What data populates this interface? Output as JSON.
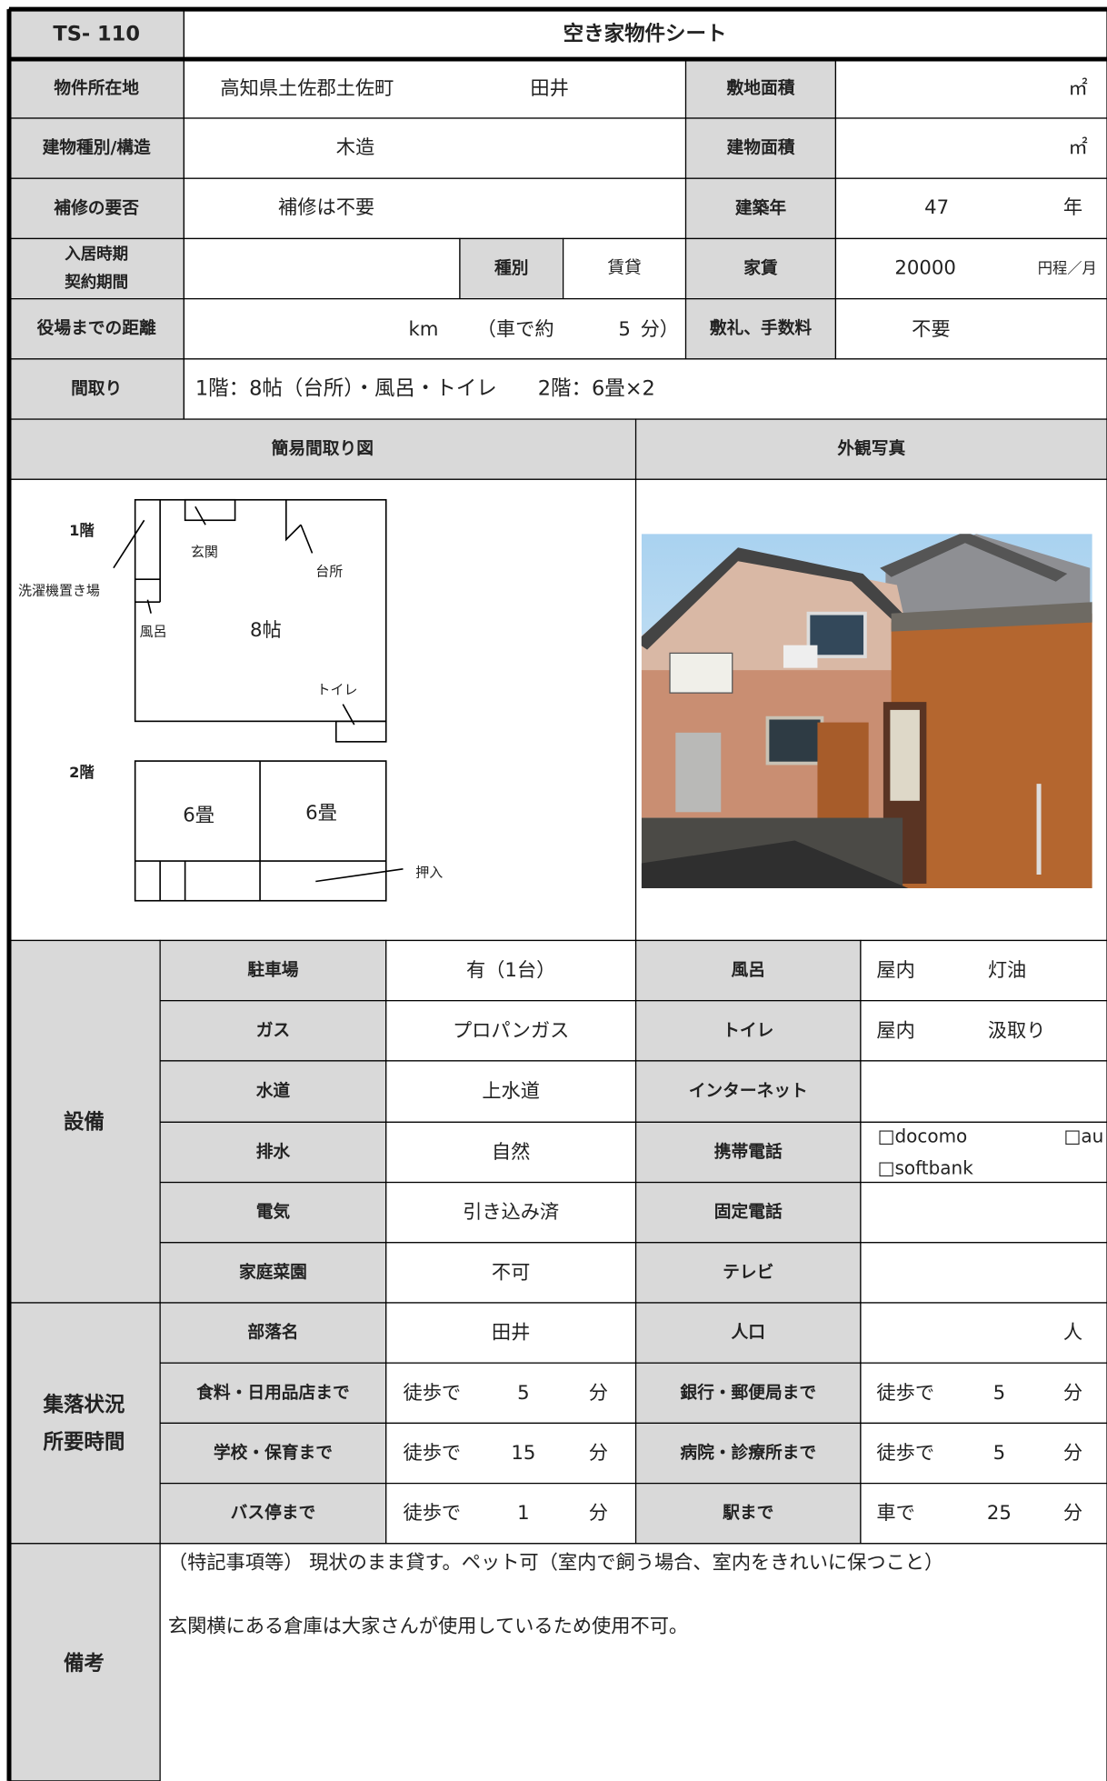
{
  "header": {
    "code": "TS- 110",
    "title": "空き家物件シート"
  },
  "property": {
    "location": {
      "label": "物件所在地",
      "value": "高知県土佐郡土佐町",
      "area": "田井"
    },
    "land_area": {
      "label": "敷地面積",
      "unit": "㎡"
    },
    "structure": {
      "label": "建物種別/構造",
      "value": "木造"
    },
    "building_area": {
      "label": "建物面積",
      "unit": "㎡"
    },
    "repair": {
      "label": "補修の要否",
      "value": "補修は不要"
    },
    "built": {
      "label": "建築年",
      "value": "47",
      "unit": "年"
    },
    "move_in": {
      "label": [
        "入居時期",
        "契約期間"
      ]
    },
    "kind": {
      "label": "種別",
      "value": "賃貸"
    },
    "rent": {
      "label": "家賃",
      "value": "20000",
      "unit": "円程／月"
    },
    "distance": {
      "label": "役場までの距離",
      "unit": "km",
      "note": "（車で約",
      "minutes": "5",
      "minutes_unit": "分）"
    },
    "fees": {
      "label": "敷礼、手数料",
      "value": "不要"
    },
    "layout": {
      "label": "間取り",
      "value": "1階：8帖（台所）・風呂・トイレ　　2階：6畳×2"
    }
  },
  "sections": {
    "floor_plan": "簡易間取り図",
    "photo": "外観写真"
  },
  "floor_plan": {
    "floor1": "1階",
    "entrance": "玄関",
    "kitchen": "台所",
    "laundry": "洗濯機置き場",
    "bath": "風呂",
    "room1": "8帖",
    "toilet": "トイレ",
    "floor2": "2階",
    "room2a": "6畳",
    "room2b": "6畳",
    "closet": "押入"
  },
  "facilities": {
    "label": "設備",
    "rows": [
      [
        {
          "label": "駐車場",
          "value": "有（1台）"
        },
        {
          "label": "風呂",
          "value": [
            "屋内",
            "灯油"
          ]
        }
      ],
      [
        {
          "label": "ガス",
          "value": "プロパンガス"
        },
        {
          "label": "トイレ",
          "value": [
            "屋内",
            "汲取り"
          ]
        }
      ],
      [
        {
          "label": "水道",
          "value": "上水道"
        },
        {
          "label": "インターネット"
        }
      ],
      [
        {
          "label": "排水",
          "value": "自然"
        },
        {
          "label": "携帯電話",
          "options": [
            "□docomo",
            "□au",
            "□softbank"
          ]
        }
      ],
      [
        {
          "label": "電気",
          "value": "引き込み済"
        },
        {
          "label": "固定電話"
        }
      ],
      [
        {
          "label": "家庭菜園",
          "value": "不可"
        },
        {
          "label": "テレビ"
        }
      ]
    ]
  },
  "settlement": {
    "label": [
      "集落状況",
      "所要時間"
    ],
    "rows": [
      [
        {
          "label": "部落名",
          "value": "田井"
        },
        {
          "label": "人口",
          "unit": "人"
        }
      ],
      [
        {
          "label": "食料・日用品店まで",
          "mode": "徒歩で",
          "value": "5",
          "unit": "分"
        },
        {
          "label": "銀行・郵便局まで",
          "mode": "徒歩で",
          "value": "5",
          "unit": "分"
        }
      ],
      [
        {
          "label": "学校・保育まで",
          "mode": "徒歩で",
          "value": "15",
          "unit": "分"
        },
        {
          "label": "病院・診療所まで",
          "mode": "徒歩で",
          "value": "5",
          "unit": "分"
        }
      ],
      [
        {
          "label": "バス停まで",
          "mode": "徒歩で",
          "value": "1",
          "unit": "分"
        },
        {
          "label": "駅まで",
          "mode": "車で",
          "value": "25",
          "unit": "分"
        }
      ]
    ]
  },
  "remarks": {
    "label": "備考",
    "lines": [
      "（特記事項等）  現状のまま貸す。ペット可（室内で飼う場合、室内をきれいに保つこと）",
      "玄関横にある倉庫は大家さんが使用しているため使用不可。"
    ]
  }
}
